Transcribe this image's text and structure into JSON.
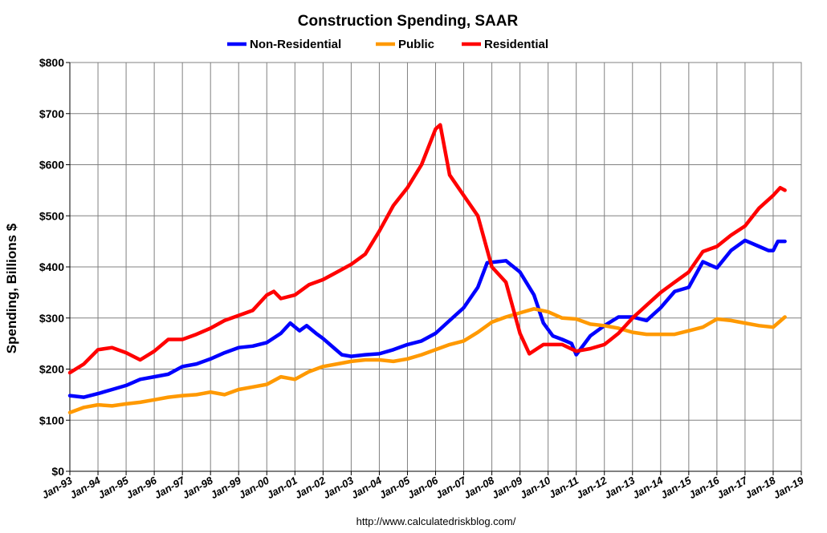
{
  "chart_data": {
    "type": "line",
    "title": "Construction Spending, SAAR",
    "xlabel": "",
    "ylabel": "Spending, Billions $",
    "source": "http://www.calculatedriskblog.com/",
    "ylim": [
      0,
      800
    ],
    "y_ticks": [
      "$0",
      "$100",
      "$200",
      "$300",
      "$400",
      "$500",
      "$600",
      "$700",
      "$800"
    ],
    "x_range": [
      "1993-01",
      "2019-01"
    ],
    "x_ticks": [
      "Jan-93",
      "Jan-94",
      "Jan-95",
      "Jan-96",
      "Jan-97",
      "Jan-98",
      "Jan-99",
      "Jan-00",
      "Jan-01",
      "Jan-02",
      "Jan-03",
      "Jan-04",
      "Jan-05",
      "Jan-06",
      "Jan-07",
      "Jan-08",
      "Jan-09",
      "Jan-10",
      "Jan-11",
      "Jan-12",
      "Jan-13",
      "Jan-14",
      "Jan-15",
      "Jan-16",
      "Jan-17",
      "Jan-18",
      "Jan-19"
    ],
    "grid": true,
    "legend_position": "top",
    "series": [
      {
        "name": "Non-Residential",
        "color": "#0000ff",
        "points": [
          [
            "1993-01",
            148
          ],
          [
            "1993-07",
            145
          ],
          [
            "1994-01",
            152
          ],
          [
            "1994-07",
            160
          ],
          [
            "1995-01",
            168
          ],
          [
            "1995-07",
            180
          ],
          [
            "1996-01",
            185
          ],
          [
            "1996-07",
            190
          ],
          [
            "1997-01",
            205
          ],
          [
            "1997-07",
            210
          ],
          [
            "1998-01",
            220
          ],
          [
            "1998-07",
            232
          ],
          [
            "1999-01",
            242
          ],
          [
            "1999-07",
            245
          ],
          [
            "2000-01",
            252
          ],
          [
            "2000-07",
            270
          ],
          [
            "2000-11",
            290
          ],
          [
            "2001-03",
            275
          ],
          [
            "2001-06",
            285
          ],
          [
            "2001-10",
            270
          ],
          [
            "2002-01",
            260
          ],
          [
            "2002-06",
            240
          ],
          [
            "2002-09",
            228
          ],
          [
            "2003-01",
            225
          ],
          [
            "2003-07",
            228
          ],
          [
            "2004-01",
            230
          ],
          [
            "2004-07",
            238
          ],
          [
            "2005-01",
            248
          ],
          [
            "2005-07",
            255
          ],
          [
            "2006-01",
            270
          ],
          [
            "2006-07",
            295
          ],
          [
            "2007-01",
            320
          ],
          [
            "2007-07",
            360
          ],
          [
            "2007-11",
            408
          ],
          [
            "2008-03",
            410
          ],
          [
            "2008-07",
            412
          ],
          [
            "2009-01",
            390
          ],
          [
            "2009-07",
            345
          ],
          [
            "2009-11",
            290
          ],
          [
            "2010-03",
            265
          ],
          [
            "2010-07",
            258
          ],
          [
            "2010-11",
            250
          ],
          [
            "2011-01",
            228
          ],
          [
            "2011-07",
            265
          ],
          [
            "2012-01",
            285
          ],
          [
            "2012-07",
            302
          ],
          [
            "2013-01",
            302
          ],
          [
            "2013-07",
            295
          ],
          [
            "2014-01",
            320
          ],
          [
            "2014-07",
            352
          ],
          [
            "2015-01",
            360
          ],
          [
            "2015-07",
            410
          ],
          [
            "2016-01",
            398
          ],
          [
            "2016-07",
            432
          ],
          [
            "2017-01",
            452
          ],
          [
            "2017-07",
            440
          ],
          [
            "2017-11",
            432
          ],
          [
            "2018-01",
            432
          ],
          [
            "2018-03",
            450
          ],
          [
            "2018-06",
            450
          ]
        ]
      },
      {
        "name": "Public",
        "color": "#ff9900",
        "points": [
          [
            "1993-01",
            115
          ],
          [
            "1993-07",
            125
          ],
          [
            "1994-01",
            130
          ],
          [
            "1994-07",
            128
          ],
          [
            "1995-01",
            132
          ],
          [
            "1995-07",
            135
          ],
          [
            "1996-01",
            140
          ],
          [
            "1996-07",
            145
          ],
          [
            "1997-01",
            148
          ],
          [
            "1997-07",
            150
          ],
          [
            "1998-01",
            155
          ],
          [
            "1998-07",
            150
          ],
          [
            "1999-01",
            160
          ],
          [
            "1999-07",
            165
          ],
          [
            "2000-01",
            170
          ],
          [
            "2000-07",
            185
          ],
          [
            "2001-01",
            180
          ],
          [
            "2001-07",
            195
          ],
          [
            "2002-01",
            205
          ],
          [
            "2002-07",
            210
          ],
          [
            "2003-01",
            215
          ],
          [
            "2003-07",
            218
          ],
          [
            "2004-01",
            218
          ],
          [
            "2004-07",
            215
          ],
          [
            "2005-01",
            220
          ],
          [
            "2005-07",
            228
          ],
          [
            "2006-01",
            238
          ],
          [
            "2006-07",
            248
          ],
          [
            "2007-01",
            255
          ],
          [
            "2007-07",
            272
          ],
          [
            "2008-01",
            292
          ],
          [
            "2008-07",
            302
          ],
          [
            "2009-01",
            310
          ],
          [
            "2009-07",
            318
          ],
          [
            "2010-01",
            312
          ],
          [
            "2010-07",
            300
          ],
          [
            "2011-01",
            298
          ],
          [
            "2011-07",
            288
          ],
          [
            "2012-01",
            285
          ],
          [
            "2012-07",
            280
          ],
          [
            "2013-01",
            272
          ],
          [
            "2013-07",
            268
          ],
          [
            "2014-01",
            268
          ],
          [
            "2014-07",
            268
          ],
          [
            "2015-01",
            275
          ],
          [
            "2015-07",
            282
          ],
          [
            "2016-01",
            298
          ],
          [
            "2016-07",
            295
          ],
          [
            "2017-01",
            290
          ],
          [
            "2017-07",
            285
          ],
          [
            "2018-01",
            282
          ],
          [
            "2018-06",
            302
          ]
        ]
      },
      {
        "name": "Residential",
        "color": "#ff0000",
        "points": [
          [
            "1993-01",
            193
          ],
          [
            "1993-07",
            210
          ],
          [
            "1994-01",
            238
          ],
          [
            "1994-07",
            242
          ],
          [
            "1995-01",
            232
          ],
          [
            "1995-07",
            218
          ],
          [
            "1996-01",
            235
          ],
          [
            "1996-07",
            258
          ],
          [
            "1997-01",
            258
          ],
          [
            "1997-07",
            268
          ],
          [
            "1998-01",
            280
          ],
          [
            "1998-07",
            295
          ],
          [
            "1999-01",
            305
          ],
          [
            "1999-07",
            315
          ],
          [
            "2000-01",
            345
          ],
          [
            "2000-04",
            352
          ],
          [
            "2000-07",
            338
          ],
          [
            "2001-01",
            345
          ],
          [
            "2001-07",
            365
          ],
          [
            "2002-01",
            375
          ],
          [
            "2002-07",
            390
          ],
          [
            "2003-01",
            405
          ],
          [
            "2003-07",
            425
          ],
          [
            "2004-01",
            470
          ],
          [
            "2004-07",
            520
          ],
          [
            "2005-01",
            555
          ],
          [
            "2005-07",
            600
          ],
          [
            "2006-01",
            670
          ],
          [
            "2006-03",
            678
          ],
          [
            "2006-07",
            580
          ],
          [
            "2007-01",
            540
          ],
          [
            "2007-07",
            500
          ],
          [
            "2008-01",
            400
          ],
          [
            "2008-07",
            370
          ],
          [
            "2009-01",
            270
          ],
          [
            "2009-05",
            230
          ],
          [
            "2009-11",
            248
          ],
          [
            "2010-07",
            248
          ],
          [
            "2011-01",
            235
          ],
          [
            "2011-07",
            240
          ],
          [
            "2012-01",
            248
          ],
          [
            "2012-07",
            270
          ],
          [
            "2013-01",
            300
          ],
          [
            "2013-07",
            325
          ],
          [
            "2014-01",
            350
          ],
          [
            "2014-07",
            370
          ],
          [
            "2015-01",
            390
          ],
          [
            "2015-07",
            430
          ],
          [
            "2016-01",
            440
          ],
          [
            "2016-07",
            462
          ],
          [
            "2017-01",
            480
          ],
          [
            "2017-07",
            515
          ],
          [
            "2018-01",
            540
          ],
          [
            "2018-04",
            555
          ],
          [
            "2018-06",
            550
          ]
        ]
      }
    ]
  }
}
